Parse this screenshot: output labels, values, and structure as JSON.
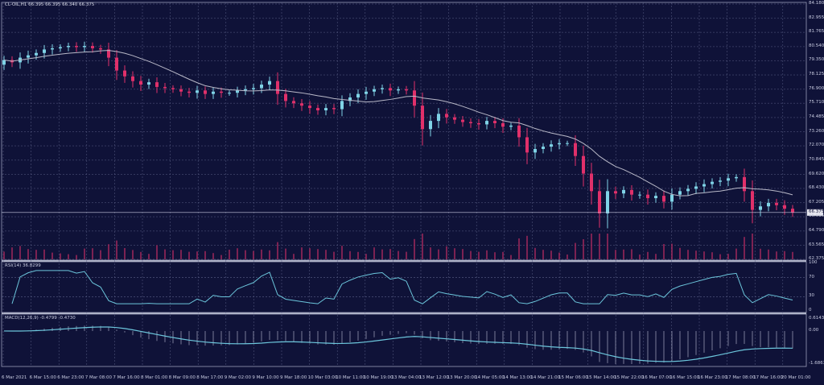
{
  "header": {
    "symbol_info": "CL-OIL,H1  66.395 66.395 66.340 66.375",
    "rsi_label": "RSI(14) 36.8299",
    "macd_label": "MACD(12,26,9) -0.4799 -0.4730"
  },
  "colors": {
    "background": "#0f1238",
    "bull": "#7fd3e6",
    "bear": "#e0306a",
    "ma": "#b9b9c8",
    "indicator": "#6cc6dc",
    "grid": "#5a5f86"
  },
  "chart_data": [
    {
      "type": "candlestick",
      "title": "",
      "ylim": [
        62.375,
        84.18
      ],
      "price_ticks": [
        "84.180",
        "82.955",
        "81.765",
        "80.540",
        "79.350",
        "78.125",
        "76.900",
        "75.710",
        "74.485",
        "73.260",
        "72.070",
        "70.845",
        "69.620",
        "68.430",
        "67.205",
        "66.015",
        "64.790",
        "63.565",
        "62.375"
      ],
      "current_price": "66.375",
      "time_ticks": [
        "6 Mar 2021",
        "6 Mar 15:00",
        "6 Mar 23:00",
        "7 Mar 08:00",
        "7 Mar 16:00",
        "8 Mar 01:00",
        "8 Mar 09:00",
        "8 Mar 17:00",
        "9 Mar 02:00",
        "9 Mar 10:00",
        "9 Mar 18:00",
        "10 Mar 03:00",
        "10 Mar 11:00",
        "10 Mar 19:00",
        "13 Mar 04:00",
        "13 Mar 12:00",
        "13 Mar 20:00",
        "14 Mar 05:00",
        "14 Mar 13:00",
        "14 Mar 21:00",
        "15 Mar 06:00",
        "15 Mar 14:00",
        "15 Mar 22:00",
        "16 Mar 07:00",
        "16 Mar 15:00",
        "16 Mar 23:00",
        "17 Mar 08:00",
        "17 Mar 16:00",
        "20 Mar 01:00"
      ],
      "first_open": 79.0,
      "closes": [
        79.4,
        79.2,
        79.6,
        79.8,
        80.0,
        80.3,
        80.4,
        80.5,
        80.6,
        80.5,
        80.6,
        80.4,
        80.3,
        79.6,
        78.5,
        78.0,
        77.6,
        77.3,
        77.5,
        77.1,
        77.0,
        76.9,
        76.7,
        76.6,
        76.8,
        76.5,
        76.7,
        76.6,
        76.6,
        76.8,
        76.9,
        77.0,
        77.3,
        77.6,
        76.5,
        75.9,
        75.7,
        75.5,
        75.3,
        75.1,
        75.3,
        75.2,
        75.9,
        76.2,
        76.5,
        76.7,
        76.9,
        77.0,
        76.8,
        76.9,
        76.8,
        75.5,
        73.5,
        74.2,
        74.8,
        74.5,
        74.3,
        74.1,
        74.0,
        73.9,
        74.2,
        74.0,
        73.7,
        73.8,
        72.8,
        71.5,
        71.8,
        72.0,
        72.2,
        72.3,
        72.3,
        71.2,
        69.7,
        68.2,
        66.3,
        68.2,
        68.0,
        68.3,
        67.9,
        67.9,
        67.6,
        67.8,
        67.3,
        67.9,
        68.2,
        68.4,
        68.6,
        68.8,
        69.0,
        69.1,
        69.3,
        69.4,
        68.2,
        66.6,
        66.9,
        67.2,
        67.0,
        66.7,
        66.4
      ]
    },
    {
      "type": "line",
      "title": "RSI(14)",
      "ylim": [
        0,
        100
      ],
      "ticks": [
        "100",
        "70",
        "30",
        "0"
      ]
    },
    {
      "type": "line",
      "title": "MACD(12,26,9)",
      "ylim": [
        -1.6863,
        0.6143
      ],
      "ticks": [
        "0.6143",
        "0.00",
        "-1.6863"
      ]
    }
  ]
}
